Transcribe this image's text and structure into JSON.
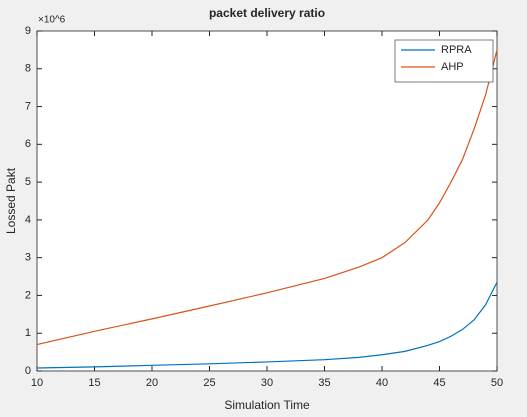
{
  "chart_data": {
    "type": "line",
    "title": "packet delivery ratio",
    "xlabel": "Simulation Time",
    "ylabel": "Lossed Pakt",
    "y_exponent": "×10^6",
    "x": [
      10,
      15,
      20,
      25,
      30,
      35,
      38,
      40,
      42,
      44,
      45,
      46,
      47,
      48,
      49,
      50
    ],
    "series": [
      {
        "name": "RPRA",
        "color": "#0072bd",
        "values": [
          0.08,
          0.11,
          0.15,
          0.19,
          0.24,
          0.3,
          0.36,
          0.43,
          0.52,
          0.68,
          0.78,
          0.92,
          1.1,
          1.35,
          1.75,
          2.35
        ]
      },
      {
        "name": "AHP",
        "color": "#d95319",
        "values": [
          0.7,
          1.05,
          1.38,
          1.72,
          2.07,
          2.45,
          2.75,
          3.0,
          3.4,
          4.0,
          4.45,
          5.0,
          5.6,
          6.4,
          7.3,
          8.5
        ]
      }
    ],
    "xlim": [
      10,
      50
    ],
    "xticks": [
      10,
      15,
      20,
      25,
      30,
      35,
      40,
      45,
      50
    ],
    "ylim": [
      0,
      9
    ],
    "yticks": [
      0,
      1,
      2,
      3,
      4,
      5,
      6,
      7,
      8,
      9
    ],
    "grid": false,
    "legend": "top-right"
  }
}
